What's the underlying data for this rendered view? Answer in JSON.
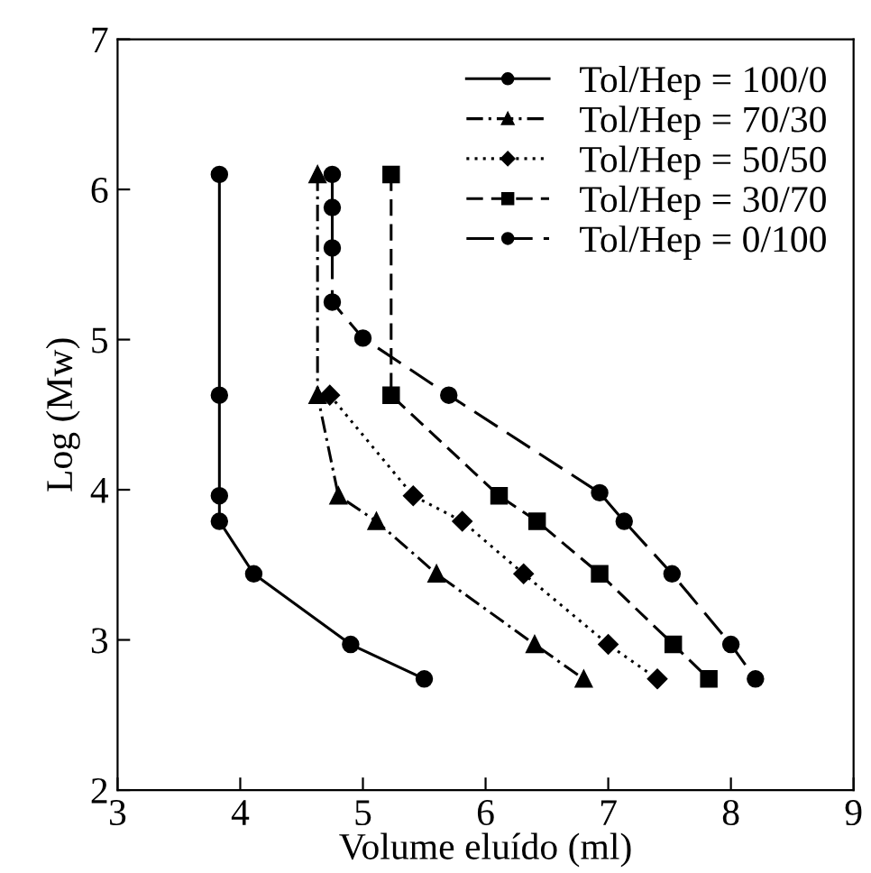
{
  "chart_data": {
    "type": "line",
    "xlabel": "Volume eluído (ml)",
    "ylabel": "Log (Mw)",
    "xlim": [
      3,
      9
    ],
    "ylim": [
      2,
      7
    ],
    "xticks": [
      3,
      4,
      5,
      6,
      7,
      8,
      9
    ],
    "yticks": [
      2,
      3,
      4,
      5,
      6,
      7
    ],
    "grid": false,
    "legend": "top right",
    "series": [
      {
        "name": "Tol/Hep = 100/0",
        "color": "#000000",
        "marker": "circle",
        "line_style": "solid",
        "x": [
          3.83,
          3.83,
          3.83,
          3.83,
          4.11,
          4.9,
          5.5
        ],
        "values": [
          6.1,
          4.63,
          3.96,
          3.79,
          3.44,
          2.97,
          2.74
        ]
      },
      {
        "name": "Tol/Hep = 70/30",
        "color": "#000000",
        "marker": "triangle",
        "line_style": "dashdot",
        "x": [
          4.63,
          4.63,
          4.8,
          5.11,
          5.6,
          6.4,
          6.8
        ],
        "values": [
          6.1,
          4.63,
          3.96,
          3.79,
          3.44,
          2.97,
          2.74
        ]
      },
      {
        "name": "Tol/Hep = 50/50",
        "color": "#000000",
        "marker": "diamond",
        "line_style": "dotted",
        "x": [
          null,
          4.73,
          5.41,
          5.81,
          6.31,
          7.0,
          7.4
        ],
        "values": [
          null,
          4.63,
          3.96,
          3.79,
          3.44,
          2.97,
          2.74
        ]
      },
      {
        "name": "Tol/Hep = 30/70",
        "color": "#000000",
        "marker": "square",
        "line_style": "dashed",
        "x": [
          5.23,
          5.23,
          6.11,
          6.42,
          6.93,
          7.53,
          7.82
        ],
        "values": [
          6.1,
          4.63,
          3.96,
          3.79,
          3.44,
          2.97,
          2.74
        ]
      },
      {
        "name": "Tol/Hep = 0/100",
        "color": "#000000",
        "marker": "circle",
        "line_style": "longdash",
        "x": [
          4.75,
          4.75,
          4.75,
          4.75,
          5.0,
          5.7,
          6.93,
          7.13,
          7.52,
          8.0,
          8.2
        ],
        "values": [
          6.1,
          5.88,
          5.61,
          5.25,
          5.01,
          4.63,
          3.98,
          3.79,
          3.44,
          2.97,
          2.74
        ]
      }
    ]
  }
}
